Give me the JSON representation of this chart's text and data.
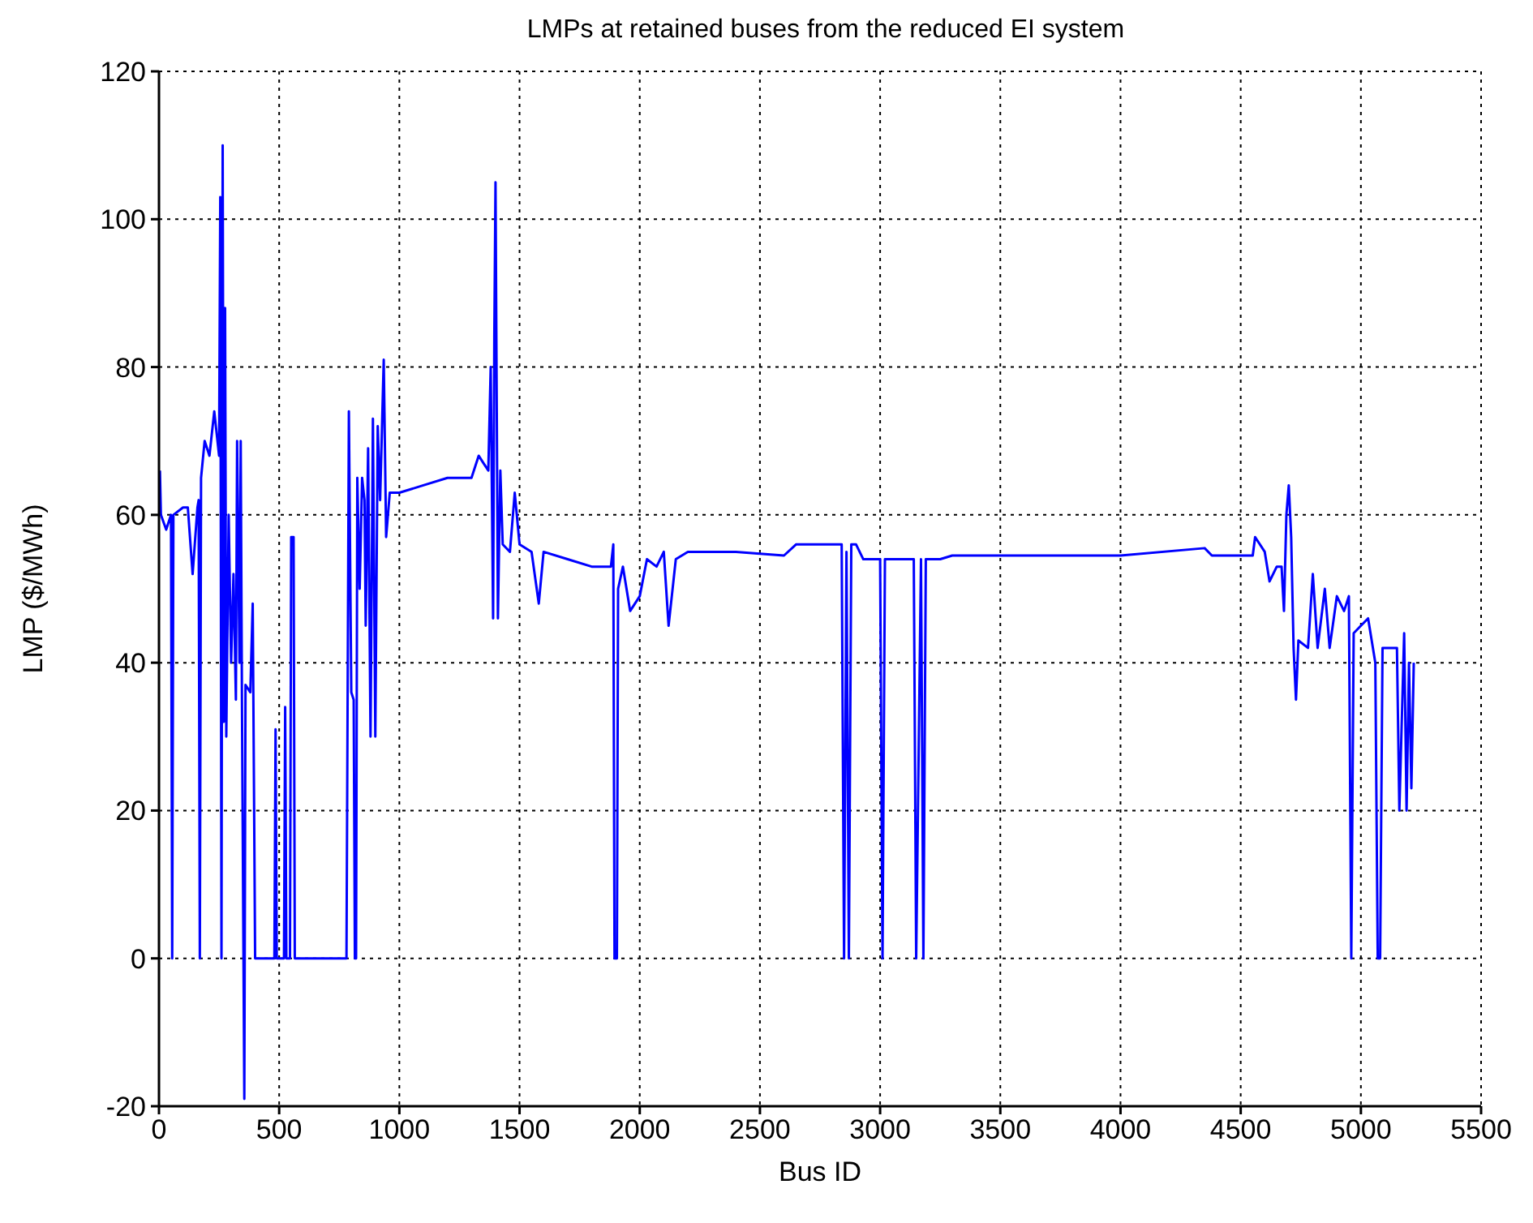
{
  "chart_data": {
    "type": "line",
    "title": "LMPs at retained buses from the reduced EI system",
    "xlabel": "Bus ID",
    "ylabel": "LMP ($/MWh)",
    "xlim": [
      0,
      5500
    ],
    "xticks": [
      0,
      500,
      1000,
      1500,
      2000,
      2500,
      3000,
      3500,
      4000,
      4500,
      5000,
      5500
    ],
    "ylim": [
      -20,
      120
    ],
    "yticks": [
      -20,
      0,
      20,
      40,
      60,
      80,
      100,
      120
    ],
    "grid": true,
    "marker": "none",
    "line_style": "solid",
    "series": [
      {
        "color": "#0000ff",
        "x": [
          4,
          8,
          30,
          50,
          55,
          60,
          100,
          120,
          140,
          160,
          165,
          170,
          175,
          190,
          210,
          230,
          250,
          255,
          260,
          265,
          270,
          275,
          280,
          290,
          300,
          310,
          320,
          325,
          335,
          340,
          345,
          355,
          360,
          380,
          390,
          400,
          480,
          485,
          490,
          520,
          525,
          530,
          545,
          550,
          560,
          565,
          780,
          790,
          800,
          810,
          815,
          820,
          825,
          835,
          845,
          855,
          860,
          870,
          880,
          890,
          900,
          910,
          920,
          935,
          945,
          960,
          1000,
          1100,
          1200,
          1300,
          1330,
          1350,
          1370,
          1380,
          1390,
          1395,
          1400,
          1410,
          1420,
          1430,
          1460,
          1480,
          1500,
          1550,
          1580,
          1600,
          1700,
          1800,
          1880,
          1890,
          1895,
          1905,
          1910,
          1930,
          1960,
          2000,
          2030,
          2070,
          2100,
          2120,
          2150,
          2200,
          2400,
          2600,
          2650,
          2840,
          2850,
          2860,
          2870,
          2880,
          2900,
          2930,
          3000,
          3010,
          3020,
          3140,
          3150,
          3170,
          3180,
          3190,
          3250,
          3300,
          3600,
          4000,
          4350,
          4380,
          4550,
          4560,
          4600,
          4620,
          4650,
          4670,
          4680,
          4690,
          4700,
          4710,
          4720,
          4730,
          4740,
          4780,
          4800,
          4820,
          4850,
          4870,
          4900,
          4930,
          4950,
          4960,
          4970,
          5000,
          5030,
          5060,
          5070,
          5080,
          5090,
          5150,
          5160,
          5180,
          5190,
          5200,
          5210,
          5220
        ],
        "values": [
          66,
          60,
          58,
          60,
          0,
          60,
          61,
          61,
          52,
          61,
          62,
          0,
          65,
          70,
          68,
          74,
          68,
          103,
          0,
          110,
          32,
          88,
          30,
          60,
          40,
          52,
          35,
          70,
          40,
          70,
          36,
          -19,
          37,
          36,
          48,
          0,
          0,
          31,
          0,
          0,
          34,
          0,
          0,
          57,
          57,
          0,
          0,
          74,
          36,
          35,
          0,
          0,
          65,
          50,
          65,
          62,
          45,
          69,
          30,
          73,
          30,
          72,
          62,
          81,
          57,
          63,
          63,
          64,
          65,
          65,
          68,
          67,
          66,
          80,
          46,
          84,
          105,
          46,
          66,
          56,
          55,
          63,
          56,
          55,
          48,
          55,
          54,
          53,
          53,
          56,
          0,
          0,
          50,
          53,
          47,
          49,
          54,
          53,
          55,
          45,
          54,
          55,
          55,
          54.5,
          56,
          56,
          0,
          55,
          0,
          56,
          56,
          54,
          54,
          0,
          54,
          54,
          0,
          54,
          0,
          54,
          54,
          54.5,
          54.5,
          54.5,
          55.5,
          54.5,
          54.5,
          57,
          55,
          51,
          53,
          53,
          47,
          60,
          64,
          57,
          42,
          35,
          43,
          42,
          52,
          42,
          50,
          42,
          49,
          47,
          49,
          0,
          44,
          45,
          46,
          40,
          0,
          0,
          42,
          42,
          20,
          44,
          20,
          40,
          23,
          40
        ]
      }
    ]
  }
}
